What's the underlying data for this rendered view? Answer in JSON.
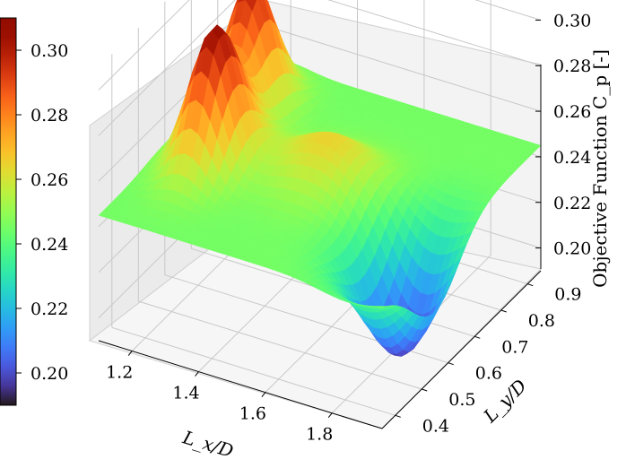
{
  "chart_data": {
    "type": "surface",
    "title": "",
    "xlabel": "L_x/D",
    "ylabel": "L_y/D",
    "zlabel": "Objective Function C_p [-]",
    "x_ticks": [
      "1.2",
      "1.4",
      "1.6",
      "1.8"
    ],
    "y_ticks": [
      "0.4",
      "0.5",
      "0.6",
      "0.7",
      "0.8",
      "0.9"
    ],
    "z_ticks": [
      "0.20",
      "0.22",
      "0.24",
      "0.26",
      "0.28",
      "0.30"
    ],
    "xlim": [
      1.1,
      1.95
    ],
    "ylim": [
      0.35,
      0.95
    ],
    "zlim": [
      0.19,
      0.31
    ],
    "colorbar": {
      "label": "",
      "ticks": [
        "0.20",
        "0.22",
        "0.24",
        "0.26",
        "0.28",
        "0.30"
      ],
      "range": [
        0.19,
        0.31
      ],
      "colormap": "turbo"
    },
    "surface_features": {
      "baseline": 0.245,
      "peaks": [
        {
          "x": 1.25,
          "y": 0.6,
          "z": 0.305
        },
        {
          "x": 1.2,
          "y": 0.8,
          "z": 0.3
        }
      ],
      "ridge_peak": {
        "x": 1.55,
        "y": 0.65,
        "z": 0.265
      },
      "valley": {
        "x": 1.85,
        "y": 0.55,
        "z": 0.195
      }
    },
    "grid": true
  }
}
